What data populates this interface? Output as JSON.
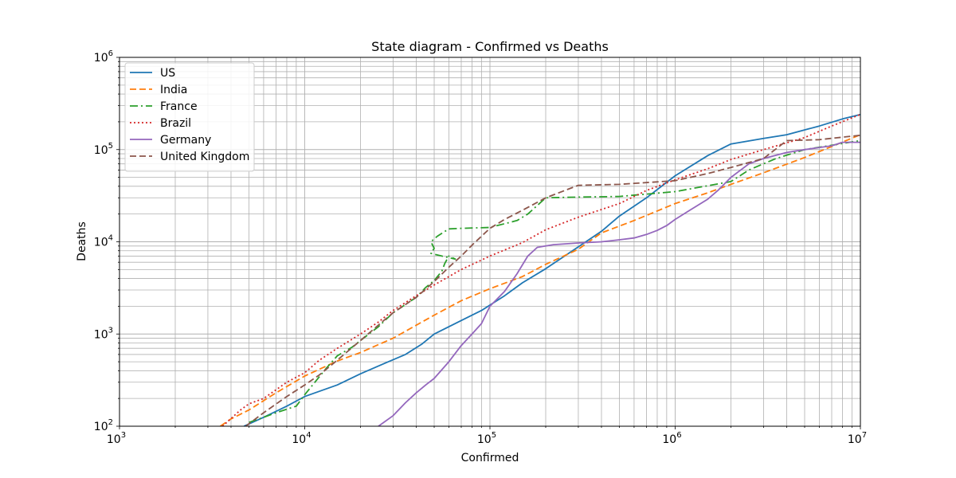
{
  "chart_data": {
    "type": "line",
    "title": "State diagram - Confirmed vs Deaths",
    "xlabel": "Confirmed",
    "ylabel": "Deaths",
    "xscale": "log",
    "yscale": "log",
    "xlim": [
      1000,
      10000000
    ],
    "ylim": [
      100,
      1000000
    ],
    "x_ticks": [
      {
        "value": 1000,
        "base": "10",
        "exp": "3"
      },
      {
        "value": 10000,
        "base": "10",
        "exp": "4"
      },
      {
        "value": 100000,
        "base": "10",
        "exp": "5"
      },
      {
        "value": 1000000,
        "base": "10",
        "exp": "6"
      },
      {
        "value": 10000000,
        "base": "10",
        "exp": "7"
      }
    ],
    "y_ticks": [
      {
        "value": 100,
        "base": "10",
        "exp": "2"
      },
      {
        "value": 1000,
        "base": "10",
        "exp": "3"
      },
      {
        "value": 10000,
        "base": "10",
        "exp": "4"
      },
      {
        "value": 100000,
        "base": "10",
        "exp": "5"
      },
      {
        "value": 1000000,
        "base": "10",
        "exp": "6"
      }
    ],
    "grid": true,
    "grid_minor": true,
    "legend_position": "upper-left",
    "series": [
      {
        "name": "US",
        "color": "#1f77b4",
        "dash": "solid",
        "points": [
          [
            4700,
            100
          ],
          [
            6000,
            125
          ],
          [
            8000,
            165
          ],
          [
            10000,
            210
          ],
          [
            15000,
            280
          ],
          [
            20000,
            370
          ],
          [
            27000,
            480
          ],
          [
            35000,
            600
          ],
          [
            43000,
            780
          ],
          [
            50000,
            1000
          ],
          [
            70000,
            1400
          ],
          [
            90000,
            1800
          ],
          [
            120000,
            2600
          ],
          [
            150000,
            3600
          ],
          [
            200000,
            5100
          ],
          [
            300000,
            8800
          ],
          [
            400000,
            13000
          ],
          [
            500000,
            19000
          ],
          [
            700000,
            30000
          ],
          [
            1000000,
            52000
          ],
          [
            1500000,
            86000
          ],
          [
            2000000,
            115000
          ],
          [
            3000000,
            132000
          ],
          [
            4000000,
            145000
          ],
          [
            6000000,
            180000
          ],
          [
            8000000,
            215000
          ],
          [
            10000000,
            240000
          ]
        ]
      },
      {
        "name": "India",
        "color": "#ff7f0e",
        "dash": "8,4",
        "points": [
          [
            3500,
            100
          ],
          [
            4000,
            120
          ],
          [
            5000,
            150
          ],
          [
            7000,
            230
          ],
          [
            10000,
            350
          ],
          [
            15000,
            510
          ],
          [
            20000,
            630
          ],
          [
            30000,
            900
          ],
          [
            50000,
            1600
          ],
          [
            70000,
            2300
          ],
          [
            100000,
            3100
          ],
          [
            150000,
            4200
          ],
          [
            200000,
            5700
          ],
          [
            300000,
            8300
          ],
          [
            400000,
            12500
          ],
          [
            600000,
            17000
          ],
          [
            1000000,
            26000
          ],
          [
            1500000,
            34000
          ],
          [
            2000000,
            42000
          ],
          [
            3000000,
            56000
          ],
          [
            5000000,
            82000
          ],
          [
            7000000,
            108000
          ],
          [
            10000000,
            145000
          ]
        ]
      },
      {
        "name": "France",
        "color": "#2ca02c",
        "dash": "10,4,2,4",
        "points": [
          [
            5000,
            110
          ],
          [
            6000,
            125
          ],
          [
            7000,
            140
          ],
          [
            9000,
            165
          ],
          [
            10000,
            220
          ],
          [
            13000,
            420
          ],
          [
            15000,
            580
          ],
          [
            18000,
            720
          ],
          [
            20000,
            850
          ],
          [
            25000,
            1200
          ],
          [
            30000,
            1700
          ],
          [
            40000,
            2500
          ],
          [
            45000,
            3200
          ],
          [
            50000,
            3800
          ],
          [
            55000,
            4800
          ],
          [
            57000,
            5800
          ],
          [
            60000,
            7000
          ],
          [
            65000,
            6500
          ],
          [
            55000,
            7000
          ],
          [
            48000,
            7500
          ],
          [
            50000,
            8500
          ],
          [
            48000,
            10000
          ],
          [
            52000,
            11500
          ],
          [
            60000,
            13800
          ],
          [
            70000,
            14000
          ],
          [
            100000,
            14300
          ],
          [
            140000,
            17000
          ],
          [
            160000,
            20000
          ],
          [
            200000,
            30000
          ],
          [
            300000,
            30500
          ],
          [
            500000,
            31000
          ],
          [
            1000000,
            35000
          ],
          [
            2000000,
            45000
          ],
          [
            2500000,
            60000
          ],
          [
            3500000,
            80000
          ],
          [
            5000000,
            100000
          ],
          [
            10000000,
            125000
          ]
        ]
      },
      {
        "name": "Brazil",
        "color": "#d62728",
        "dash": "2,3",
        "points": [
          [
            3600,
            100
          ],
          [
            4500,
            150
          ],
          [
            5000,
            175
          ],
          [
            6000,
            200
          ],
          [
            8000,
            300
          ],
          [
            10000,
            380
          ],
          [
            12000,
            520
          ],
          [
            15000,
            700
          ],
          [
            20000,
            1000
          ],
          [
            25000,
            1350
          ],
          [
            30000,
            1800
          ],
          [
            40000,
            2600
          ],
          [
            50000,
            3400
          ],
          [
            70000,
            5000
          ],
          [
            100000,
            7000
          ],
          [
            150000,
            9800
          ],
          [
            200000,
            13500
          ],
          [
            300000,
            18500
          ],
          [
            500000,
            26000
          ],
          [
            700000,
            36000
          ],
          [
            1000000,
            47000
          ],
          [
            1500000,
            62000
          ],
          [
            2000000,
            78000
          ],
          [
            3000000,
            100000
          ],
          [
            5000000,
            135000
          ],
          [
            7000000,
            180000
          ],
          [
            10000000,
            240000
          ]
        ]
      },
      {
        "name": "Germany",
        "color": "#9467bd",
        "dash": "solid",
        "points": [
          [
            25000,
            100
          ],
          [
            30000,
            130
          ],
          [
            35000,
            180
          ],
          [
            40000,
            230
          ],
          [
            45000,
            280
          ],
          [
            50000,
            330
          ],
          [
            60000,
            500
          ],
          [
            70000,
            750
          ],
          [
            80000,
            1000
          ],
          [
            90000,
            1300
          ],
          [
            100000,
            2000
          ],
          [
            120000,
            2900
          ],
          [
            140000,
            4500
          ],
          [
            160000,
            7000
          ],
          [
            180000,
            8700
          ],
          [
            220000,
            9300
          ],
          [
            300000,
            9700
          ],
          [
            400000,
            10000
          ],
          [
            500000,
            10500
          ],
          [
            600000,
            11000
          ],
          [
            700000,
            12000
          ],
          [
            800000,
            13300
          ],
          [
            900000,
            15000
          ],
          [
            1000000,
            17500
          ],
          [
            1200000,
            22000
          ],
          [
            1500000,
            29000
          ],
          [
            1700000,
            36000
          ],
          [
            2000000,
            50000
          ],
          [
            2500000,
            70000
          ],
          [
            3000000,
            80000
          ],
          [
            4000000,
            93000
          ],
          [
            5000000,
            100000
          ],
          [
            7000000,
            110000
          ],
          [
            8000000,
            120000
          ],
          [
            10000000,
            120000
          ]
        ]
      },
      {
        "name": "United Kingdom",
        "color": "#8c564b",
        "dash": "8,4",
        "points": [
          [
            4800,
            100
          ],
          [
            6000,
            140
          ],
          [
            8000,
            210
          ],
          [
            10000,
            280
          ],
          [
            12000,
            360
          ],
          [
            15000,
            520
          ],
          [
            20000,
            850
          ],
          [
            25000,
            1250
          ],
          [
            30000,
            1700
          ],
          [
            40000,
            2500
          ],
          [
            50000,
            3700
          ],
          [
            60000,
            5300
          ],
          [
            70000,
            7000
          ],
          [
            80000,
            9200
          ],
          [
            100000,
            14000
          ],
          [
            120000,
            17500
          ],
          [
            150000,
            22000
          ],
          [
            200000,
            30000
          ],
          [
            300000,
            41000
          ],
          [
            500000,
            42000
          ],
          [
            1000000,
            46000
          ],
          [
            1500000,
            55000
          ],
          [
            2000000,
            64000
          ],
          [
            3000000,
            80000
          ],
          [
            4000000,
            125000
          ],
          [
            6000000,
            128000
          ],
          [
            10000000,
            143000
          ]
        ]
      }
    ]
  }
}
